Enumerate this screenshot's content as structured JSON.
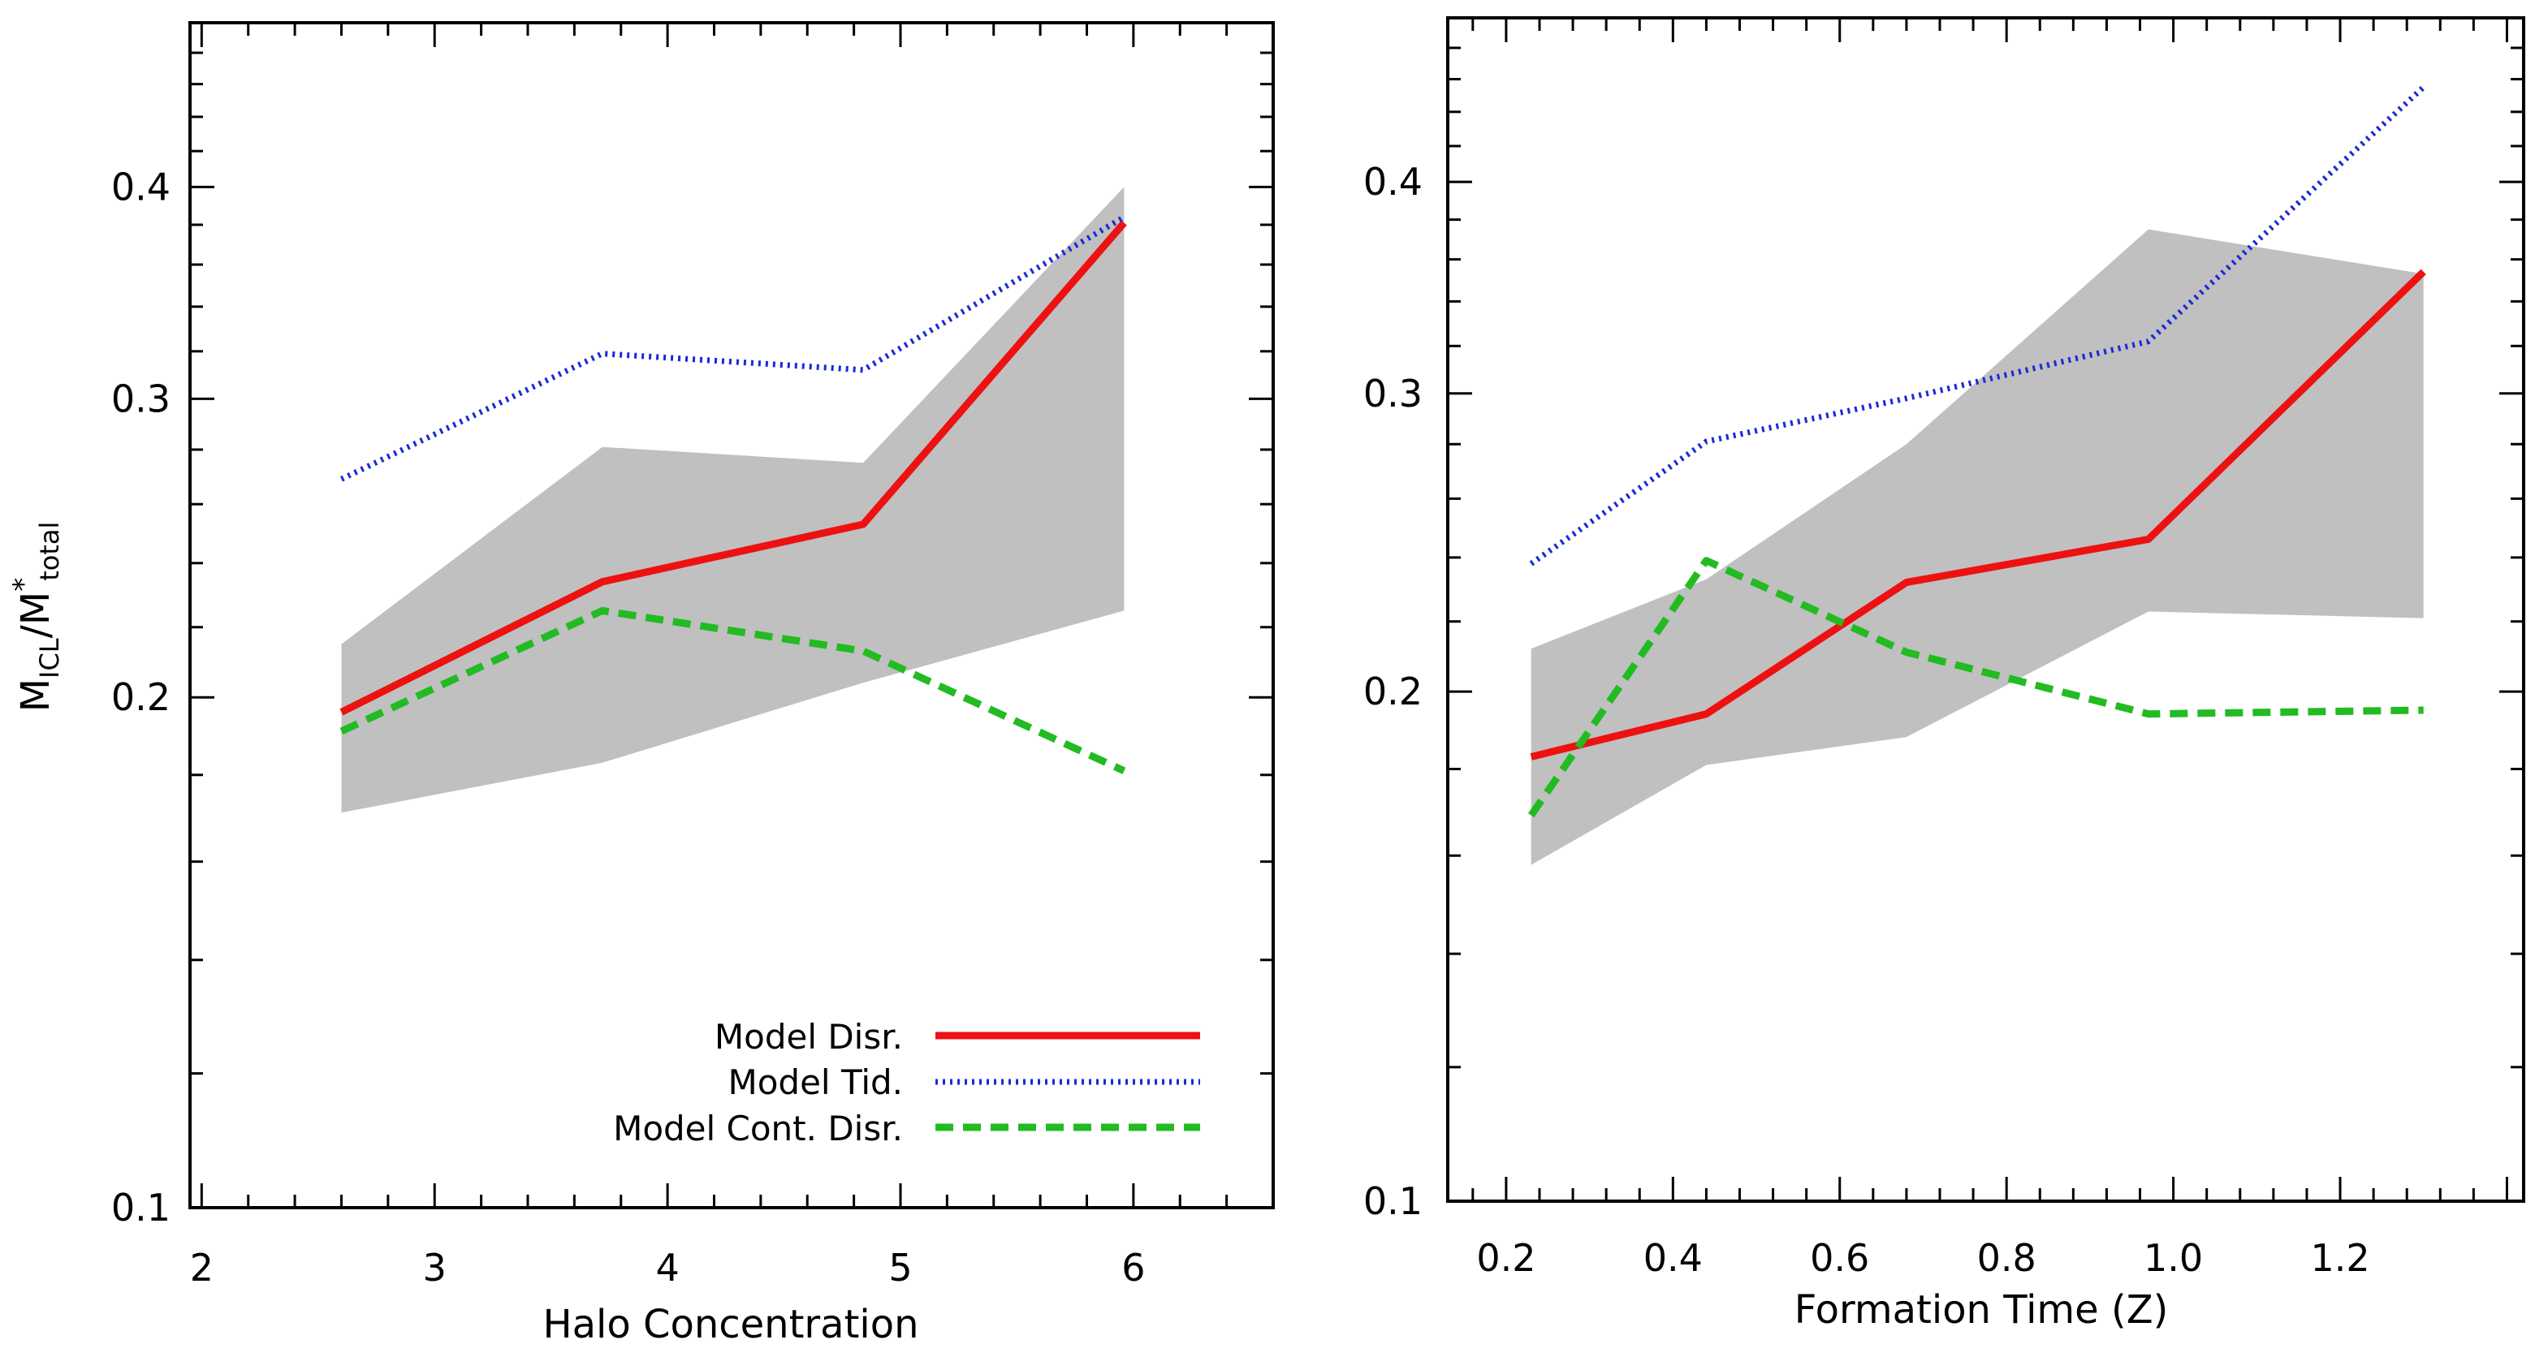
{
  "colors": {
    "model_disr": "#ee1111",
    "model_tid": "#1a2bd6",
    "model_cont_disr": "#22bb22",
    "band": "#c0c0c0",
    "axes": "#000000"
  },
  "chart_data": [
    {
      "type": "line",
      "xlabel": "Halo Concentration",
      "ylabel_main": "M",
      "ylabel_sub1": "ICL",
      "ylabel_slash": "/M",
      "ylabel_sup": "*",
      "ylabel_sub2": "total",
      "y_scale": "log",
      "xlim": [
        1.95,
        6.6
      ],
      "ylim": [
        0.1,
        0.5
      ],
      "x_ticks": [
        "2",
        "3",
        "4",
        "5",
        "6"
      ],
      "y_ticks": [
        "0.1",
        "0.2",
        "0.3",
        "0.4"
      ],
      "x": [
        2.6,
        3.72,
        4.84,
        5.96
      ],
      "series": [
        {
          "name": "Model Disr.",
          "key": "model_disr",
          "style": "solid",
          "values": [
            0.196,
            0.234,
            0.253,
            0.381
          ]
        },
        {
          "name": "Model Tid.",
          "key": "model_tid",
          "style": "dotted",
          "values": [
            0.269,
            0.319,
            0.312,
            0.384
          ]
        },
        {
          "name": "Model Cont. Disr.",
          "key": "model_cont_disr",
          "style": "dashed",
          "values": [
            0.191,
            0.225,
            0.213,
            0.181
          ]
        }
      ],
      "band": {
        "lower": [
          0.171,
          0.183,
          0.204,
          0.225
        ],
        "upper": [
          0.215,
          0.281,
          0.275,
          0.4
        ]
      },
      "legend": {
        "location": "lower-right",
        "entries": [
          "Model Disr.",
          "Model Tid.",
          "Model Cont. Disr."
        ]
      }
    },
    {
      "type": "line",
      "xlabel": "Formation Time (Z)",
      "y_scale": "log",
      "xlim": [
        0.13,
        1.42
      ],
      "ylim": [
        0.1,
        0.5
      ],
      "x_ticks": [
        "0.2",
        "0.4",
        "0.6",
        "0.8",
        "1.0",
        "1.2"
      ],
      "y_ticks": [
        "0.1",
        "0.2",
        "0.3",
        "0.4"
      ],
      "x": [
        0.23,
        0.44,
        0.68,
        0.97,
        1.3
      ],
      "series": [
        {
          "name": "Model Disr.",
          "key": "model_disr",
          "style": "solid",
          "values": [
            0.183,
            0.194,
            0.232,
            0.246,
            0.354
          ]
        },
        {
          "name": "Model Tid.",
          "key": "model_tid",
          "style": "dotted",
          "values": [
            0.238,
            0.281,
            0.298,
            0.322,
            0.455
          ]
        },
        {
          "name": "Model Cont. Disr.",
          "key": "model_cont_disr",
          "style": "dashed",
          "values": [
            0.169,
            0.239,
            0.211,
            0.194,
            0.195
          ]
        }
      ],
      "band": {
        "lower": [
          0.158,
          0.181,
          0.188,
          0.223,
          0.221
        ],
        "upper": [
          0.212,
          0.233,
          0.28,
          0.375,
          0.353
        ]
      }
    }
  ]
}
